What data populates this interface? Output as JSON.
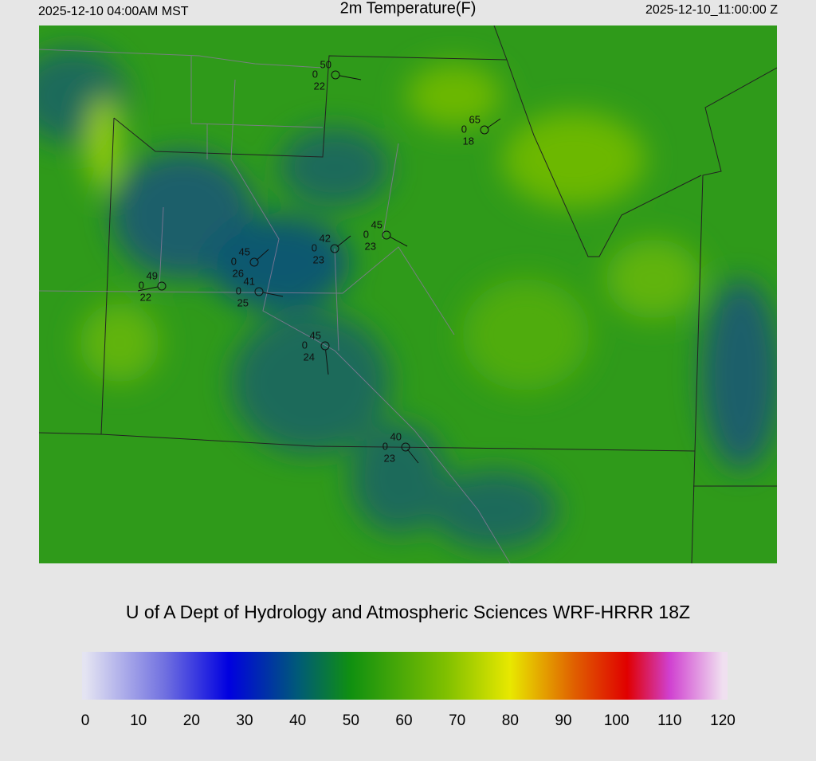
{
  "header": {
    "valid_local": "2025-12-10 04:00AM MST",
    "title": "2m Temperature(F)",
    "valid_utc": "2025-12-10_11:00:00 Z"
  },
  "credit": "U of A Dept of Hydrology and Atmospheric Sciences WRF-HRRR 18Z",
  "stations": [
    {
      "temp": 50,
      "precip": 0,
      "dewpoint": 22
    },
    {
      "temp": 65,
      "precip": 0,
      "dewpoint": 18
    },
    {
      "temp": 45,
      "precip": 0,
      "dewpoint": 23
    },
    {
      "temp": 42,
      "precip": 0,
      "dewpoint": 23
    },
    {
      "temp": 45,
      "precip": 0,
      "dewpoint": 26
    },
    {
      "temp": 49,
      "precip": 0,
      "dewpoint": 22
    },
    {
      "temp": 41,
      "precip": 0,
      "dewpoint": 25
    },
    {
      "temp": 45,
      "precip": 0,
      "dewpoint": 24
    },
    {
      "temp": 40,
      "precip": 0,
      "dewpoint": 23
    }
  ],
  "colorbar": {
    "lim": [
      0,
      120
    ],
    "ticks": [
      0,
      10,
      20,
      30,
      40,
      50,
      60,
      70,
      80,
      90,
      100,
      110,
      120
    ],
    "stops": [
      {
        "value": 0,
        "color": "#e4e4f2"
      },
      {
        "value": 15,
        "color": "#7070e0"
      },
      {
        "value": 27,
        "color": "#0000e0"
      },
      {
        "value": 40,
        "color": "#005a78"
      },
      {
        "value": 50,
        "color": "#109010"
      },
      {
        "value": 68,
        "color": "#80c000"
      },
      {
        "value": 80,
        "color": "#e8e800"
      },
      {
        "value": 92,
        "color": "#e06000"
      },
      {
        "value": 102,
        "color": "#e00000"
      },
      {
        "value": 110,
        "color": "#d040d0"
      },
      {
        "value": 120,
        "color": "#f0e0f0"
      }
    ]
  }
}
